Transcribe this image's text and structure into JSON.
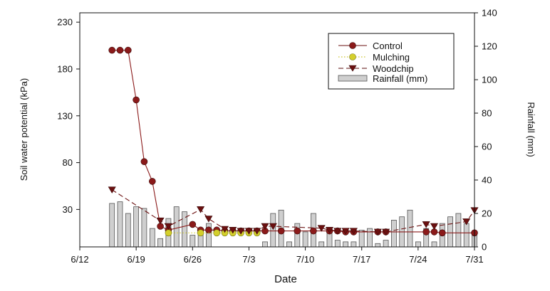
{
  "chart_data": {
    "type": "line+bar",
    "x_axis": {
      "label": "Date",
      "ticks": [
        {
          "day": 0,
          "label": "6/12"
        },
        {
          "day": 7,
          "label": "6/19"
        },
        {
          "day": 14,
          "label": "6/26"
        },
        {
          "day": 21,
          "label": "7/3"
        },
        {
          "day": 28,
          "label": "7/10"
        },
        {
          "day": 35,
          "label": "7/17"
        },
        {
          "day": 42,
          "label": "7/24"
        },
        {
          "day": 49,
          "label": "7/31"
        }
      ],
      "range": [
        0,
        49
      ],
      "day_zero": "6/12"
    },
    "y_left": {
      "label": "Soil water potential (kPa)",
      "ticks": [
        30,
        80,
        130,
        180,
        230
      ],
      "range": [
        -10,
        240
      ]
    },
    "y_right": {
      "label": "Rainfall (mm)",
      "ticks": [
        0,
        20,
        40,
        60,
        80,
        100,
        120,
        140
      ],
      "range": [
        0,
        140
      ]
    },
    "legend": {
      "position": "top-right",
      "entries": [
        "Control",
        "Mulching",
        "Woodchip",
        "Rainfall (mm)"
      ]
    },
    "series": [
      {
        "name": "Control",
        "style": "solid",
        "color": "#8b1a1a",
        "marker": "circle",
        "points": [
          [
            4,
            200
          ],
          [
            5,
            200
          ],
          [
            6,
            200
          ],
          [
            7,
            147
          ],
          [
            8,
            81
          ],
          [
            9,
            60
          ],
          [
            10,
            12
          ],
          [
            11,
            8
          ],
          [
            14,
            14
          ],
          [
            15,
            8
          ],
          [
            16,
            8
          ],
          [
            17,
            8
          ],
          [
            18,
            7
          ],
          [
            19,
            7
          ],
          [
            20,
            7
          ],
          [
            21,
            7
          ],
          [
            22,
            7
          ],
          [
            23,
            7
          ],
          [
            25,
            7
          ],
          [
            27,
            7
          ],
          [
            29,
            7
          ],
          [
            31,
            7
          ],
          [
            32,
            7
          ],
          [
            33,
            6
          ],
          [
            34,
            6
          ],
          [
            37,
            6
          ],
          [
            38,
            6
          ],
          [
            43,
            6
          ],
          [
            44,
            6
          ],
          [
            45,
            5
          ],
          [
            49,
            5
          ]
        ]
      },
      {
        "name": "Mulching",
        "style": "dotted",
        "color": "#d4cf2c",
        "marker": "circle",
        "points": [
          [
            11,
            5
          ],
          [
            15,
            5
          ],
          [
            17,
            5
          ],
          [
            18,
            5
          ],
          [
            19,
            5
          ],
          [
            20,
            5
          ],
          [
            21,
            5
          ],
          [
            22,
            5
          ]
        ]
      },
      {
        "name": "Woodchip",
        "style": "dashed",
        "color": "#6b1010",
        "marker": "triangle-down",
        "points": [
          [
            4,
            51
          ],
          [
            10,
            18
          ],
          [
            11,
            12
          ],
          [
            15,
            30
          ],
          [
            16,
            20
          ],
          [
            18,
            9
          ],
          [
            19,
            8
          ],
          [
            20,
            7
          ],
          [
            21,
            7
          ],
          [
            22,
            7
          ],
          [
            23,
            12
          ],
          [
            24,
            12
          ],
          [
            30,
            10
          ],
          [
            31,
            8
          ],
          [
            32,
            7
          ],
          [
            33,
            7
          ],
          [
            34,
            7
          ],
          [
            37,
            6
          ],
          [
            38,
            6
          ],
          [
            43,
            14
          ],
          [
            44,
            12
          ],
          [
            48,
            17
          ],
          [
            49,
            29
          ]
        ]
      }
    ],
    "rainfall": {
      "name": "Rainfall (mm)",
      "color": "#cfcfcf",
      "bars": [
        {
          "day": 4,
          "value": 26
        },
        {
          "day": 5,
          "value": 27
        },
        {
          "day": 6,
          "value": 20
        },
        {
          "day": 7,
          "value": 24
        },
        {
          "day": 8,
          "value": 23
        },
        {
          "day": 9,
          "value": 11
        },
        {
          "day": 10,
          "value": 5
        },
        {
          "day": 11,
          "value": 17
        },
        {
          "day": 12,
          "value": 24
        },
        {
          "day": 13,
          "value": 21
        },
        {
          "day": 14,
          "value": 7
        },
        {
          "day": 15,
          "value": 8
        },
        {
          "day": 16,
          "value": 14
        },
        {
          "day": 23,
          "value": 3
        },
        {
          "day": 24,
          "value": 20
        },
        {
          "day": 25,
          "value": 22
        },
        {
          "day": 26,
          "value": 3
        },
        {
          "day": 27,
          "value": 14
        },
        {
          "day": 28,
          "value": 9
        },
        {
          "day": 29,
          "value": 20
        },
        {
          "day": 30,
          "value": 3
        },
        {
          "day": 31,
          "value": 9
        },
        {
          "day": 32,
          "value": 4
        },
        {
          "day": 33,
          "value": 3
        },
        {
          "day": 34,
          "value": 3
        },
        {
          "day": 35,
          "value": 10
        },
        {
          "day": 36,
          "value": 11
        },
        {
          "day": 37,
          "value": 2
        },
        {
          "day": 38,
          "value": 4
        },
        {
          "day": 39,
          "value": 16
        },
        {
          "day": 40,
          "value": 18
        },
        {
          "day": 41,
          "value": 22
        },
        {
          "day": 42,
          "value": 3
        },
        {
          "day": 43,
          "value": 11
        },
        {
          "day": 44,
          "value": 3
        },
        {
          "day": 45,
          "value": 14
        },
        {
          "day": 46,
          "value": 18
        },
        {
          "day": 47,
          "value": 20
        },
        {
          "day": 48,
          "value": 14
        },
        {
          "day": 49,
          "value": 9
        }
      ]
    }
  }
}
